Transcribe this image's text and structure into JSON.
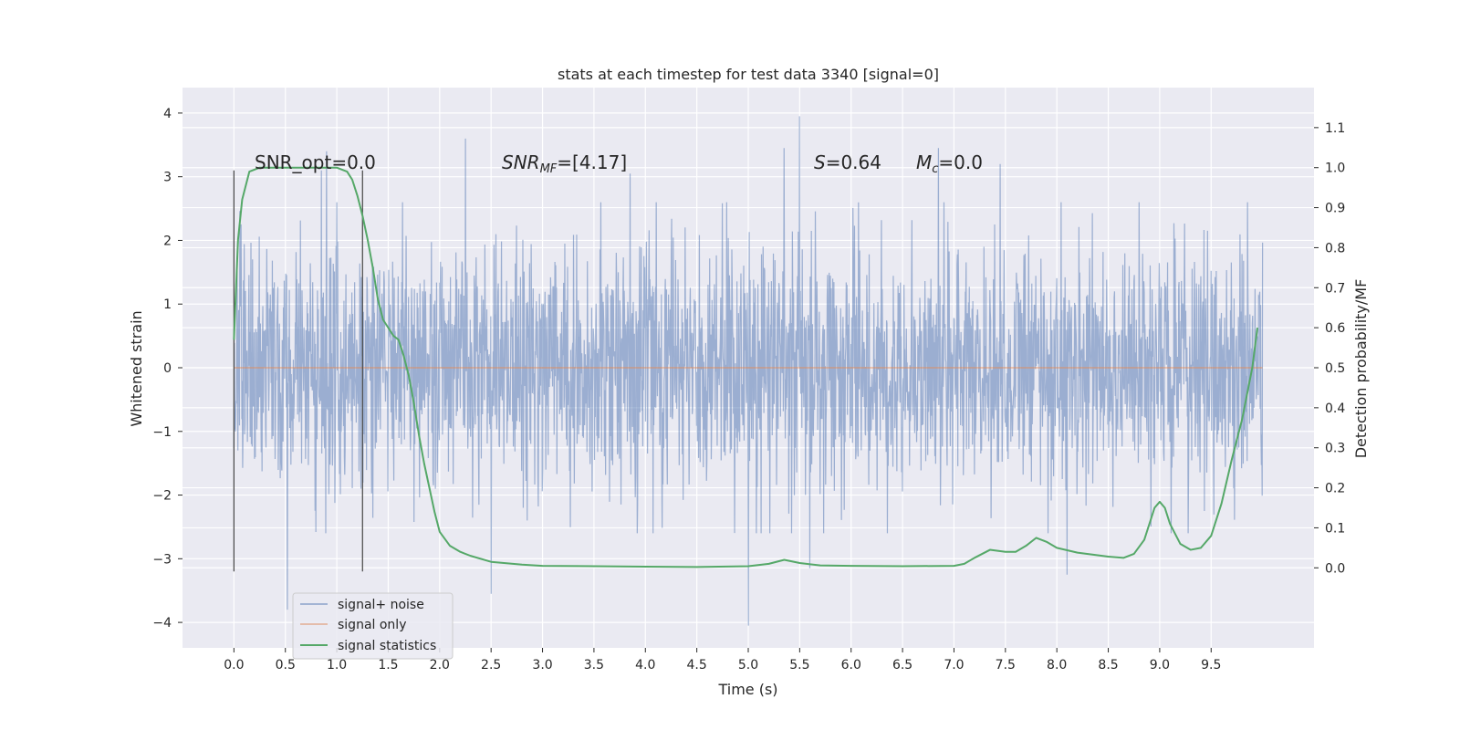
{
  "chart_data": {
    "type": "line",
    "title": "stats at each timestep for test data 3340 [signal=0]",
    "xlabel": "Time (s)",
    "ylabel": "Whitened strain",
    "ylabel_right": "Detection probability/MF",
    "xlim": [
      -0.5,
      10.5
    ],
    "ylim": [
      -4.4,
      4.4
    ],
    "ylim_right": [
      -0.2,
      1.2
    ],
    "xticks": [
      "0.0",
      "0.5",
      "1.0",
      "1.5",
      "2.0",
      "2.5",
      "3.0",
      "3.5",
      "4.0",
      "4.5",
      "5.0",
      "5.5",
      "6.0",
      "6.5",
      "7.0",
      "7.5",
      "8.0",
      "8.5",
      "9.0",
      "9.5"
    ],
    "yticks": [
      "−4",
      "−3",
      "−2",
      "−1",
      "0",
      "1",
      "2",
      "3",
      "4"
    ],
    "yticks_right": [
      "0.0",
      "0.1",
      "0.2",
      "0.3",
      "0.4",
      "0.5",
      "0.6",
      "0.7",
      "0.8",
      "0.9",
      "1.0",
      "1.1"
    ],
    "grid": true,
    "legend_position": "lower-left",
    "annotations": {
      "snr_opt": "SNR_opt=0.0",
      "snr_mf_main": "SNR",
      "snr_mf_sub": "MF",
      "snr_mf_value": "=[4.17]",
      "s_main": "S",
      "s_value": "=0.64",
      "mc_main": "M",
      "mc_sub": "c",
      "mc_value": "=0.0"
    },
    "vlines": [
      0.0,
      1.25
    ],
    "series": [
      {
        "name": "signal+ noise",
        "color": "#4c72b0",
        "kind": "noise",
        "x_range": [
          0.0,
          10.0
        ],
        "amplitude_envelope": 2.5,
        "peak_values": [
          {
            "x": 0.52,
            "y": -3.8
          },
          {
            "x": 0.85,
            "y": 3.1
          },
          {
            "x": 0.9,
            "y": 3.4
          },
          {
            "x": 2.25,
            "y": 3.6
          },
          {
            "x": 2.5,
            "y": -3.55
          },
          {
            "x": 3.85,
            "y": 3.05
          },
          {
            "x": 5.0,
            "y": -4.05
          },
          {
            "x": 5.35,
            "y": 3.45
          },
          {
            "x": 5.5,
            "y": 3.95
          },
          {
            "x": 5.6,
            "y": -3.15
          },
          {
            "x": 6.85,
            "y": 3.45
          },
          {
            "x": 7.45,
            "y": 3.2
          },
          {
            "x": 8.1,
            "y": -3.25
          }
        ]
      },
      {
        "name": "signal only",
        "color": "#dd8452",
        "kind": "flat",
        "value": 0.0
      },
      {
        "name": "signal statistics",
        "color": "#55a868",
        "kind": "curve",
        "axis": "right",
        "x": [
          0.0,
          0.04,
          0.08,
          0.15,
          0.25,
          0.4,
          0.6,
          0.8,
          1.0,
          1.1,
          1.15,
          1.2,
          1.25,
          1.3,
          1.35,
          1.4,
          1.45,
          1.5,
          1.55,
          1.6,
          1.65,
          1.7,
          1.75,
          1.8,
          1.85,
          1.9,
          1.95,
          2.0,
          2.1,
          2.2,
          2.3,
          2.5,
          2.8,
          3.0,
          3.5,
          4.0,
          4.5,
          5.0,
          5.2,
          5.35,
          5.5,
          5.7,
          6.0,
          6.5,
          7.0,
          7.1,
          7.2,
          7.35,
          7.5,
          7.6,
          7.7,
          7.8,
          7.9,
          8.0,
          8.2,
          8.5,
          8.65,
          8.75,
          8.85,
          8.95,
          9.0,
          9.05,
          9.1,
          9.2,
          9.3,
          9.4,
          9.5,
          9.6,
          9.7,
          9.8,
          9.9,
          9.95
        ],
        "values": [
          0.57,
          0.82,
          0.92,
          0.99,
          1.0,
          1.0,
          1.0,
          1.0,
          1.0,
          0.99,
          0.97,
          0.93,
          0.88,
          0.82,
          0.75,
          0.67,
          0.62,
          0.6,
          0.58,
          0.57,
          0.53,
          0.48,
          0.41,
          0.33,
          0.26,
          0.2,
          0.14,
          0.09,
          0.055,
          0.04,
          0.03,
          0.015,
          0.008,
          0.005,
          0.004,
          0.003,
          0.002,
          0.004,
          0.01,
          0.02,
          0.012,
          0.006,
          0.005,
          0.004,
          0.005,
          0.01,
          0.025,
          0.045,
          0.04,
          0.04,
          0.055,
          0.075,
          0.065,
          0.05,
          0.038,
          0.028,
          0.025,
          0.035,
          0.07,
          0.15,
          0.165,
          0.15,
          0.11,
          0.06,
          0.045,
          0.05,
          0.08,
          0.16,
          0.27,
          0.37,
          0.5,
          0.6
        ]
      }
    ]
  }
}
